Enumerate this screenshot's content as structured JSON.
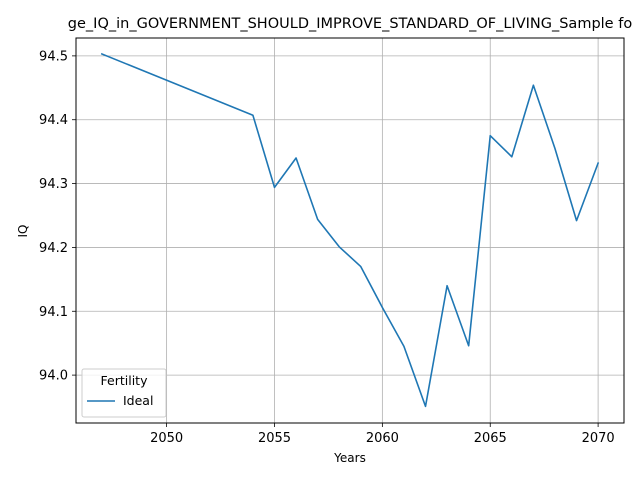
{
  "chart_data": {
    "type": "line",
    "title": "ge_IQ_in_GOVERNMENT_SHOULD_IMPROVE_STANDARD_OF_LIVING_Sample fo",
    "xlabel": "Years",
    "ylabel": "IQ",
    "xlim": [
      2045.8,
      2071.2
    ],
    "ylim": [
      93.925,
      94.528
    ],
    "xticks": [
      2050,
      2055,
      2060,
      2065,
      2070
    ],
    "yticks": [
      94.0,
      94.1,
      94.2,
      94.3,
      94.4,
      94.5
    ],
    "ytick_labels": [
      "94.0",
      "94.1",
      "94.2",
      "94.3",
      "94.4",
      "94.5"
    ],
    "grid": true,
    "legend": {
      "title": "Fertility",
      "placement": "lower-left"
    },
    "series": [
      {
        "name": "Ideal",
        "color": "#1f77b4",
        "x": [
          2047,
          2054,
          2055,
          2056,
          2057,
          2058,
          2059,
          2060,
          2061,
          2062,
          2063,
          2064,
          2065,
          2066,
          2067,
          2068,
          2069,
          2070
        ],
        "y": [
          94.503,
          94.407,
          94.294,
          94.34,
          94.244,
          94.201,
          94.17,
          94.106,
          94.045,
          93.951,
          94.14,
          94.046,
          94.375,
          94.342,
          94.454,
          94.355,
          94.242,
          94.332
        ]
      }
    ]
  }
}
